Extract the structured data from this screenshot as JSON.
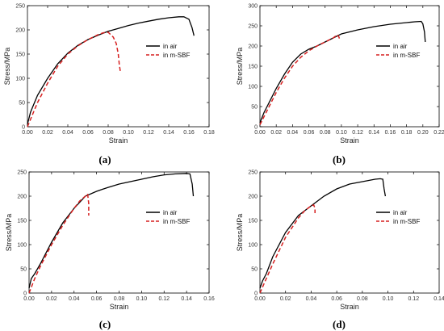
{
  "chart_data": [
    {
      "type": "line",
      "panel_label": "(a)",
      "xlabel": "Strain",
      "ylabel": "Stress/MPa",
      "xlim": [
        0,
        0.18
      ],
      "ylim": [
        0,
        250
      ],
      "xticks": [
        "0.00",
        "0.02",
        "0.04",
        "0.06",
        "0.08",
        "0.10",
        "0.12",
        "0.14",
        "0.16",
        "0.18"
      ],
      "yticks": [
        "0",
        "50",
        "100",
        "150",
        "200",
        "250"
      ],
      "legend_position": "center-right",
      "grid": false,
      "series": [
        {
          "name": "in air",
          "color": "#000000",
          "dash": "solid",
          "x": [
            0,
            0.003,
            0.006,
            0.01,
            0.02,
            0.03,
            0.04,
            0.05,
            0.06,
            0.07,
            0.08,
            0.09,
            0.1,
            0.11,
            0.12,
            0.13,
            0.14,
            0.15,
            0.155,
            0.16,
            0.163,
            0.165
          ],
          "y": [
            5,
            30,
            45,
            65,
            100,
            130,
            152,
            168,
            180,
            189,
            197,
            203,
            209,
            214,
            218,
            222,
            225,
            227,
            227,
            222,
            205,
            188
          ]
        },
        {
          "name": "in m-SBF",
          "color": "#d62020",
          "dash": "dashed",
          "x": [
            0,
            0.01,
            0.02,
            0.03,
            0.04,
            0.05,
            0.06,
            0.07,
            0.075,
            0.08,
            0.085,
            0.088,
            0.09,
            0.091,
            0.092
          ],
          "y": [
            0,
            50,
            90,
            125,
            150,
            167,
            180,
            190,
            194,
            195,
            185,
            172,
            150,
            128,
            115
          ]
        }
      ]
    },
    {
      "type": "line",
      "panel_label": "(b)",
      "xlabel": "Strain",
      "ylabel": "Stress/MPa",
      "xlim": [
        0,
        0.22
      ],
      "ylim": [
        0,
        300
      ],
      "xticks": [
        "0.00",
        "0.02",
        "0.04",
        "0.06",
        "0.08",
        "0.10",
        "0.12",
        "0.14",
        "0.16",
        "0.18",
        "0.20",
        "0.22"
      ],
      "yticks": [
        "0",
        "50",
        "100",
        "150",
        "200",
        "250",
        "300"
      ],
      "legend_position": "center-right",
      "grid": false,
      "series": [
        {
          "name": "in air",
          "color": "#000000",
          "dash": "solid",
          "x": [
            0,
            0.005,
            0.01,
            0.02,
            0.03,
            0.04,
            0.05,
            0.06,
            0.07,
            0.08,
            0.1,
            0.12,
            0.14,
            0.16,
            0.18,
            0.19,
            0.198,
            0.2,
            0.202,
            0.203
          ],
          "y": [
            10,
            35,
            55,
            95,
            130,
            160,
            180,
            192,
            200,
            210,
            230,
            240,
            248,
            254,
            258,
            260,
            261,
            255,
            235,
            210
          ]
        },
        {
          "name": "in m-SBF",
          "color": "#d62020",
          "dash": "dashed",
          "x": [
            0,
            0.01,
            0.02,
            0.03,
            0.04,
            0.05,
            0.06,
            0.07,
            0.08,
            0.09,
            0.095,
            0.097,
            0.098
          ],
          "y": [
            5,
            45,
            85,
            120,
            150,
            172,
            188,
            200,
            210,
            220,
            228,
            222,
            215
          ]
        }
      ]
    },
    {
      "type": "line",
      "panel_label": "(c)",
      "xlabel": "Strain",
      "ylabel": "Stress/MPa",
      "xlim": [
        0,
        0.16
      ],
      "ylim": [
        0,
        250
      ],
      "xticks": [
        "0.00",
        "0.02",
        "0.04",
        "0.06",
        "0.08",
        "0.10",
        "0.12",
        "0.14",
        "0.16"
      ],
      "yticks": [
        "0",
        "50",
        "100",
        "150",
        "200",
        "250"
      ],
      "legend_position": "center-right",
      "grid": false,
      "series": [
        {
          "name": "in air",
          "color": "#000000",
          "dash": "solid",
          "x": [
            0,
            0.002,
            0.005,
            0.01,
            0.02,
            0.03,
            0.04,
            0.05,
            0.06,
            0.07,
            0.08,
            0.09,
            0.1,
            0.11,
            0.12,
            0.13,
            0.14,
            0.143,
            0.145,
            0.146
          ],
          "y": [
            10,
            30,
            40,
            60,
            105,
            145,
            175,
            200,
            210,
            218,
            225,
            230,
            235,
            240,
            244,
            246,
            247,
            246,
            225,
            200
          ]
        },
        {
          "name": "in m-SBF",
          "color": "#d62020",
          "dash": "dashed",
          "x": [
            0,
            0.005,
            0.01,
            0.02,
            0.03,
            0.04,
            0.045,
            0.05,
            0.052,
            0.053,
            0.053
          ],
          "y": [
            0,
            30,
            55,
            100,
            140,
            175,
            190,
            200,
            205,
            185,
            160
          ]
        }
      ]
    },
    {
      "type": "line",
      "panel_label": "(d)",
      "xlabel": "Strain",
      "ylabel": "Stress/MPa",
      "xlim": [
        0,
        0.14
      ],
      "ylim": [
        0,
        250
      ],
      "xticks": [
        "0.00",
        "0.02",
        "0.04",
        "0.06",
        "0.08",
        "0.10",
        "0.12",
        "0.14"
      ],
      "yticks": [
        "0",
        "50",
        "100",
        "150",
        "200",
        "250"
      ],
      "legend_position": "center-right",
      "grid": false,
      "series": [
        {
          "name": "in air",
          "color": "#000000",
          "dash": "solid",
          "x": [
            0,
            0.002,
            0.005,
            0.01,
            0.02,
            0.03,
            0.04,
            0.05,
            0.06,
            0.07,
            0.08,
            0.09,
            0.094,
            0.096,
            0.097,
            0.098
          ],
          "y": [
            10,
            25,
            40,
            75,
            125,
            160,
            180,
            200,
            215,
            225,
            230,
            235,
            236,
            235,
            215,
            200
          ]
        },
        {
          "name": "in m-SBF",
          "color": "#d62020",
          "dash": "dashed",
          "x": [
            0,
            0.005,
            0.01,
            0.02,
            0.03,
            0.035,
            0.04,
            0.042,
            0.043,
            0.043
          ],
          "y": [
            0,
            30,
            60,
            115,
            155,
            170,
            180,
            182,
            175,
            165
          ]
        }
      ]
    }
  ]
}
